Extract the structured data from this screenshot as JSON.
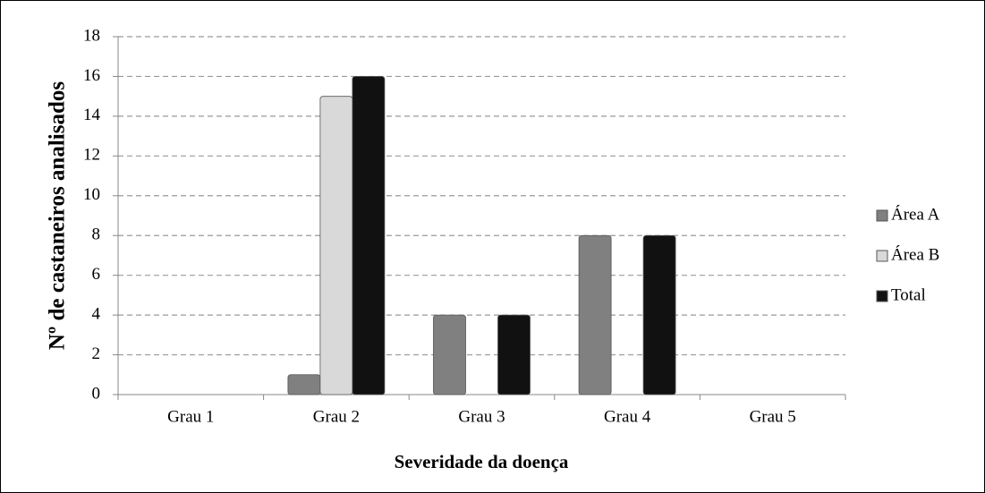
{
  "chart_data": {
    "type": "bar",
    "xlabel": "Severidade da doença",
    "ylabel": "Nº de castaneiros analisados",
    "categories": [
      "Grau 1",
      "Grau 2",
      "Grau 3",
      "Grau 4",
      "Grau 5"
    ],
    "series": [
      {
        "name": "Área A",
        "color": "#808080",
        "values": [
          0,
          1,
          4,
          8,
          0
        ]
      },
      {
        "name": "Área B",
        "color": "#d9d9d9",
        "values": [
          0,
          15,
          0,
          0,
          0
        ]
      },
      {
        "name": "Total",
        "color": "#111111",
        "values": [
          0,
          16,
          4,
          8,
          0
        ]
      }
    ],
    "ylim": [
      0,
      18
    ],
    "yticks": [
      0,
      2,
      4,
      6,
      8,
      10,
      12,
      14,
      16,
      18
    ],
    "grid": true,
    "legend": "right"
  }
}
